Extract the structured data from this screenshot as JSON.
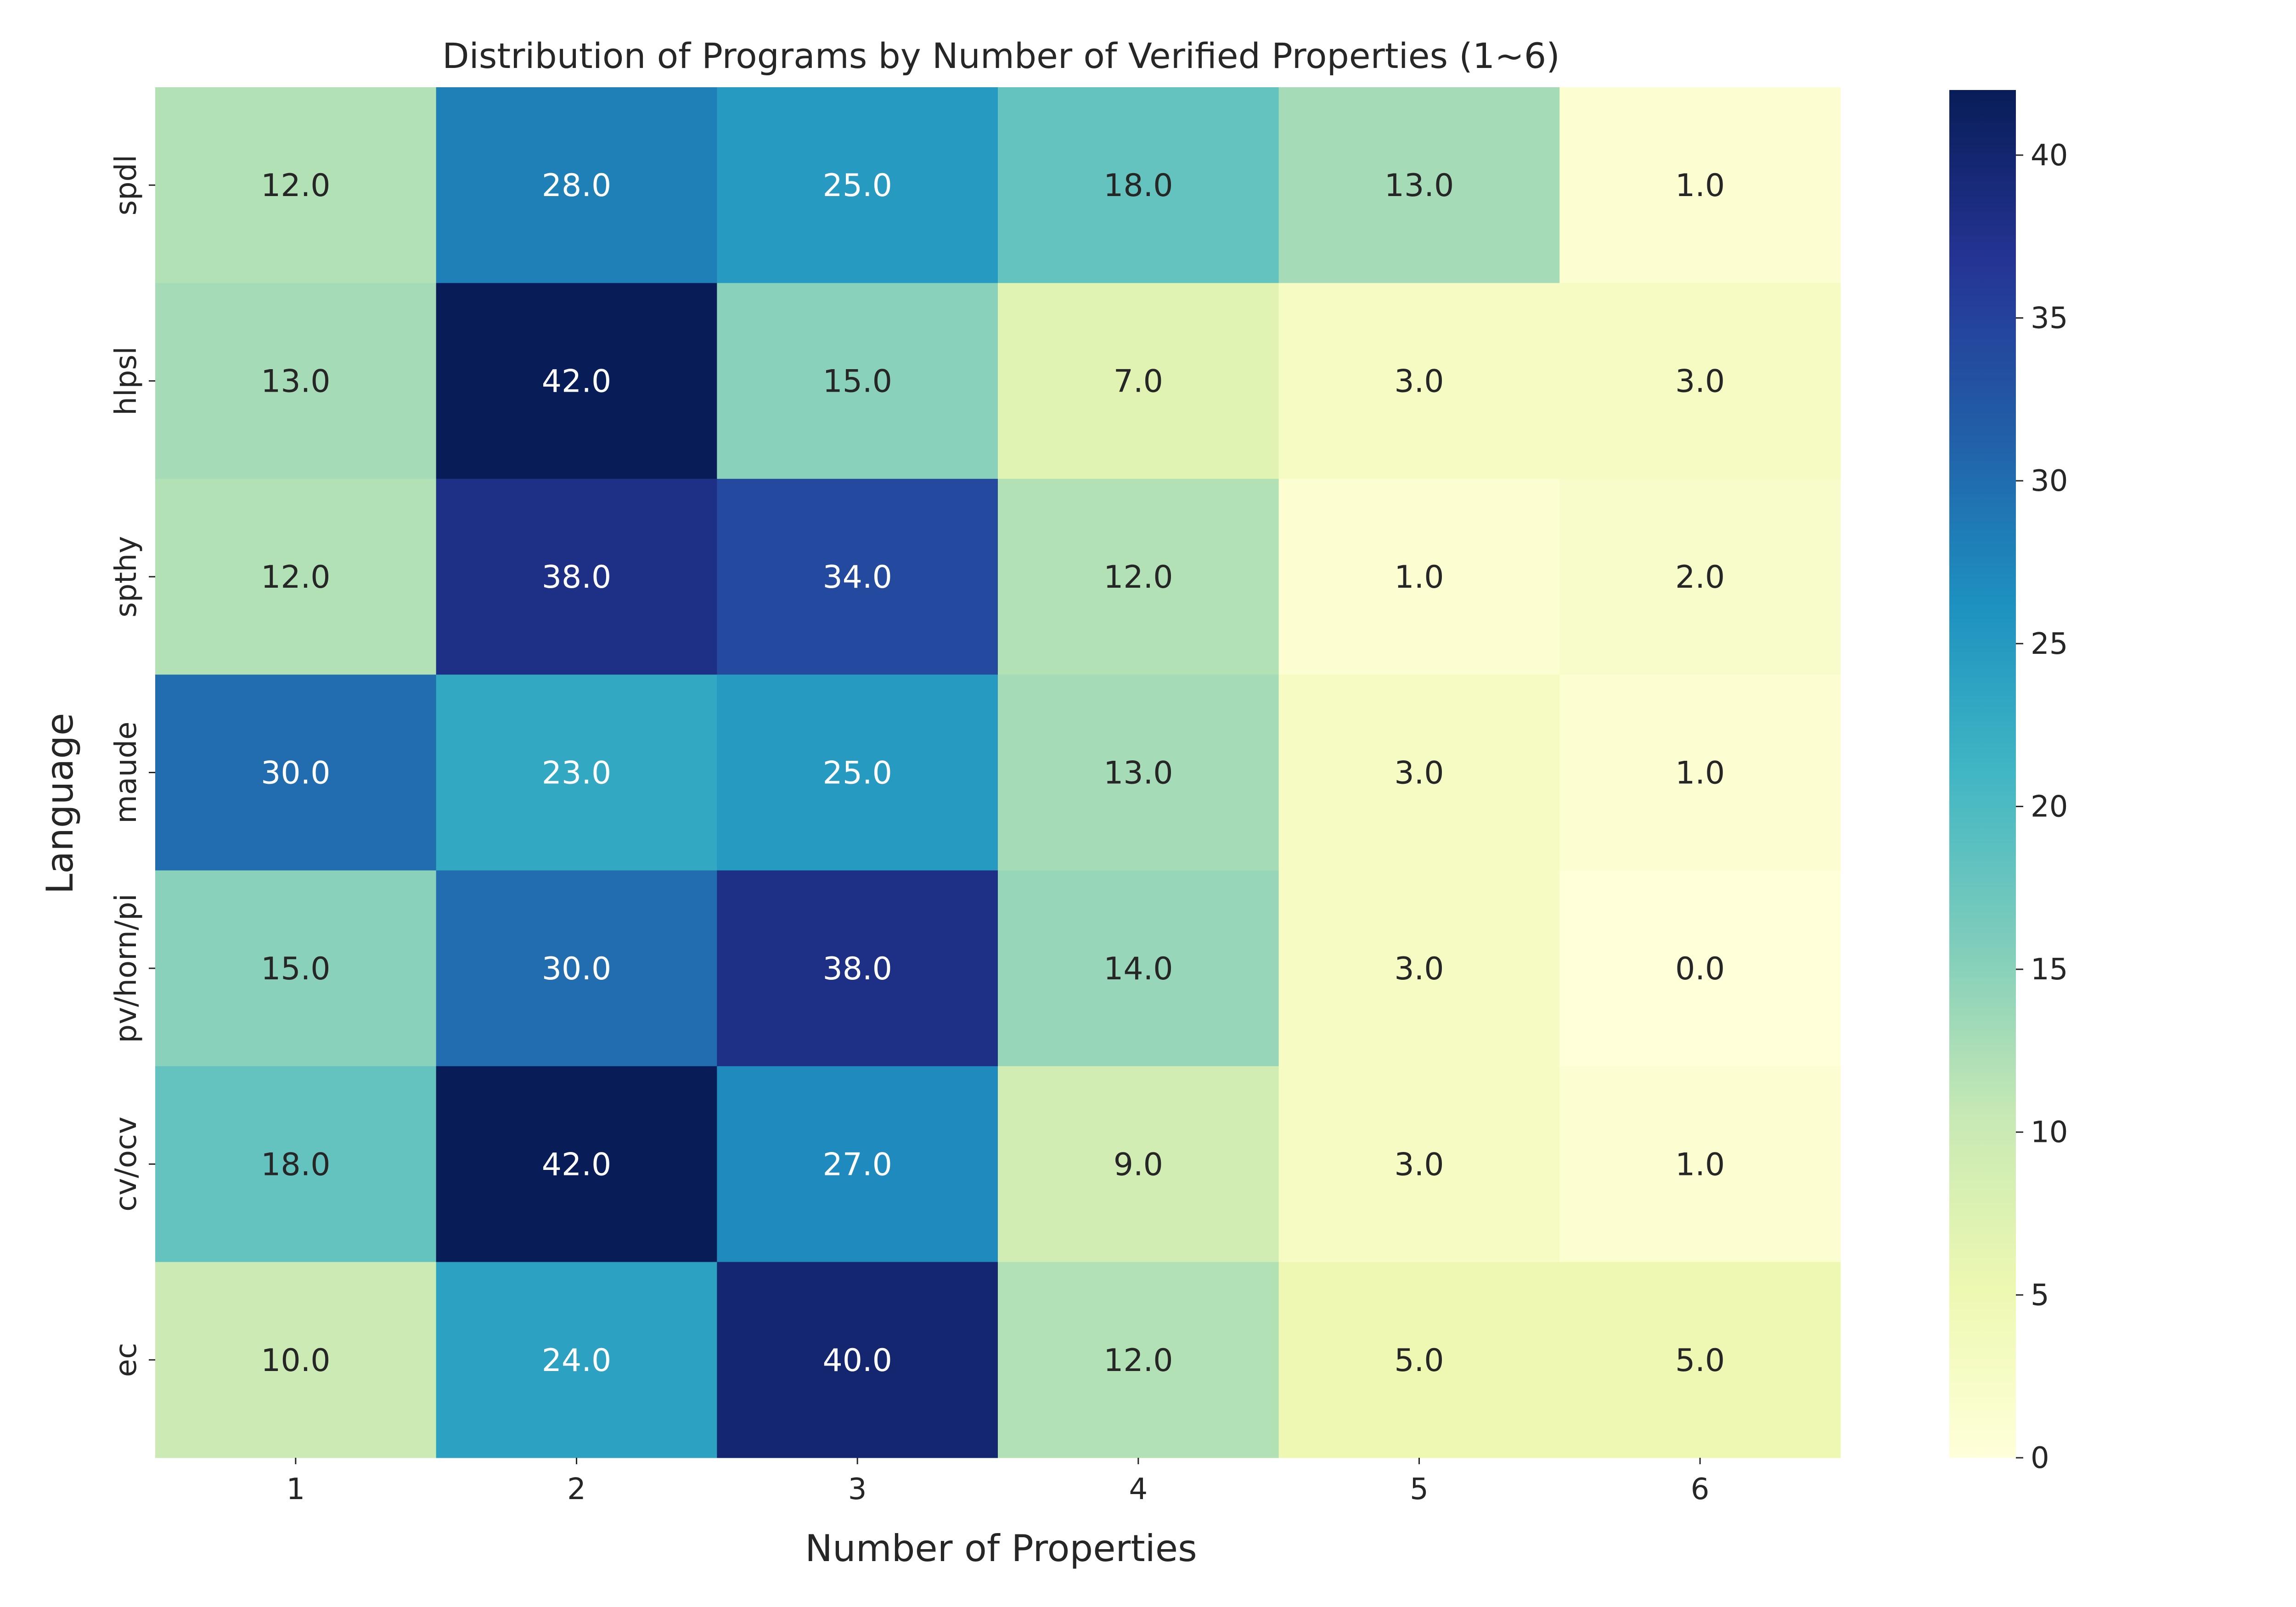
{
  "chart_data": {
    "type": "heatmap",
    "title": "Distribution of Programs by Number of Verified Properties (1~6)",
    "xlabel": "Number of Properties",
    "ylabel": "Language",
    "x_categories": [
      "1",
      "2",
      "3",
      "4",
      "5",
      "6"
    ],
    "y_categories": [
      "spdl",
      "hlpsl",
      "spthy",
      "maude",
      "pv/horn/pi",
      "cv/ocv",
      "ec"
    ],
    "values": [
      [
        12,
        28,
        25,
        18,
        13,
        1
      ],
      [
        13,
        42,
        15,
        7,
        3,
        3
      ],
      [
        12,
        38,
        34,
        12,
        1,
        2
      ],
      [
        30,
        23,
        25,
        13,
        3,
        1
      ],
      [
        15,
        30,
        38,
        14,
        3,
        0
      ],
      [
        18,
        42,
        27,
        9,
        3,
        1
      ],
      [
        10,
        24,
        40,
        12,
        5,
        5
      ]
    ],
    "value_labels": [
      [
        "12.0",
        "28.0",
        "25.0",
        "18.0",
        "13.0",
        "1.0"
      ],
      [
        "13.0",
        "42.0",
        "15.0",
        "7.0",
        "3.0",
        "3.0"
      ],
      [
        "12.0",
        "38.0",
        "34.0",
        "12.0",
        "1.0",
        "2.0"
      ],
      [
        "30.0",
        "23.0",
        "25.0",
        "13.0",
        "3.0",
        "1.0"
      ],
      [
        "15.0",
        "30.0",
        "38.0",
        "14.0",
        "3.0",
        "0.0"
      ],
      [
        "18.0",
        "42.0",
        "27.0",
        "9.0",
        "3.0",
        "1.0"
      ],
      [
        "10.0",
        "24.0",
        "40.0",
        "12.0",
        "5.0",
        "5.0"
      ]
    ],
    "colormap": "YlGnBu",
    "color_range": [
      0,
      42
    ],
    "colorbar_ticks": [
      "0",
      "5",
      "10",
      "15",
      "20",
      "25",
      "30",
      "35",
      "40"
    ],
    "colorbar_stops": [
      "#ffffd9",
      "#edf8b1",
      "#c7e9b4",
      "#7fcdbb",
      "#41b6c4",
      "#1d91c0",
      "#225ea8",
      "#253494",
      "#081d58"
    ],
    "grid": false,
    "legend": "colorbar-right"
  }
}
